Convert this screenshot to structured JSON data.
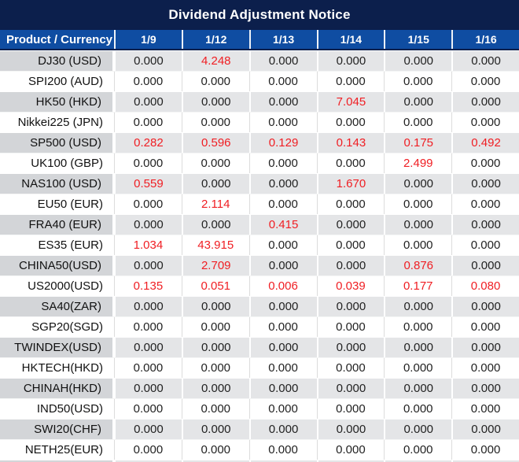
{
  "title": "Dividend Adjustment Notice",
  "colors": {
    "title_bar": "#0c1f4c",
    "header_blue": "#0f4da2",
    "row_gray_label": "#d3d5d8",
    "row_gray_value": "#e4e5e7",
    "row_white": "#ffffff",
    "value_red": "#f01e23",
    "text_dark": "#222222"
  },
  "table": {
    "product_header": "Product / Currency",
    "date_headers": [
      "1/9",
      "1/12",
      "1/13",
      "1/14",
      "1/15",
      "1/16"
    ],
    "rows": [
      {
        "product": "DJ30 (USD)",
        "values": [
          "0.000",
          "4.248",
          "0.000",
          "0.000",
          "0.000",
          "0.000"
        ],
        "red": [
          0,
          1,
          0,
          0,
          0,
          0
        ]
      },
      {
        "product": "SPI200 (AUD)",
        "values": [
          "0.000",
          "0.000",
          "0.000",
          "0.000",
          "0.000",
          "0.000"
        ],
        "red": [
          0,
          0,
          0,
          0,
          0,
          0
        ]
      },
      {
        "product": "HK50 (HKD)",
        "values": [
          "0.000",
          "0.000",
          "0.000",
          "7.045",
          "0.000",
          "0.000"
        ],
        "red": [
          0,
          0,
          0,
          1,
          0,
          0
        ]
      },
      {
        "product": "Nikkei225 (JPN)",
        "values": [
          "0.000",
          "0.000",
          "0.000",
          "0.000",
          "0.000",
          "0.000"
        ],
        "red": [
          0,
          0,
          0,
          0,
          0,
          0
        ]
      },
      {
        "product": "SP500 (USD)",
        "values": [
          "0.282",
          "0.596",
          "0.129",
          "0.143",
          "0.175",
          "0.492"
        ],
        "red": [
          1,
          1,
          1,
          1,
          1,
          1
        ]
      },
      {
        "product": "UK100 (GBP)",
        "values": [
          "0.000",
          "0.000",
          "0.000",
          "0.000",
          "2.499",
          "0.000"
        ],
        "red": [
          0,
          0,
          0,
          0,
          1,
          0
        ]
      },
      {
        "product": "NAS100 (USD)",
        "values": [
          "0.559",
          "0.000",
          "0.000",
          "1.670",
          "0.000",
          "0.000"
        ],
        "red": [
          1,
          0,
          0,
          1,
          0,
          0
        ]
      },
      {
        "product": "EU50 (EUR)",
        "values": [
          "0.000",
          "2.114",
          "0.000",
          "0.000",
          "0.000",
          "0.000"
        ],
        "red": [
          0,
          1,
          0,
          0,
          0,
          0
        ]
      },
      {
        "product": "FRA40 (EUR)",
        "values": [
          "0.000",
          "0.000",
          "0.415",
          "0.000",
          "0.000",
          "0.000"
        ],
        "red": [
          0,
          0,
          1,
          0,
          0,
          0
        ]
      },
      {
        "product": "ES35 (EUR)",
        "values": [
          "1.034",
          "43.915",
          "0.000",
          "0.000",
          "0.000",
          "0.000"
        ],
        "red": [
          1,
          1,
          0,
          0,
          0,
          0
        ]
      },
      {
        "product": "CHINA50(USD)",
        "values": [
          "0.000",
          "2.709",
          "0.000",
          "0.000",
          "0.876",
          "0.000"
        ],
        "red": [
          0,
          1,
          0,
          0,
          1,
          0
        ]
      },
      {
        "product": "US2000(USD)",
        "values": [
          "0.135",
          "0.051",
          "0.006",
          "0.039",
          "0.177",
          "0.080"
        ],
        "red": [
          1,
          1,
          1,
          1,
          1,
          1
        ]
      },
      {
        "product": "SA40(ZAR)",
        "values": [
          "0.000",
          "0.000",
          "0.000",
          "0.000",
          "0.000",
          "0.000"
        ],
        "red": [
          0,
          0,
          0,
          0,
          0,
          0
        ]
      },
      {
        "product": "SGP20(SGD)",
        "values": [
          "0.000",
          "0.000",
          "0.000",
          "0.000",
          "0.000",
          "0.000"
        ],
        "red": [
          0,
          0,
          0,
          0,
          0,
          0
        ]
      },
      {
        "product": "TWINDEX(USD)",
        "values": [
          "0.000",
          "0.000",
          "0.000",
          "0.000",
          "0.000",
          "0.000"
        ],
        "red": [
          0,
          0,
          0,
          0,
          0,
          0
        ]
      },
      {
        "product": "HKTECH(HKD)",
        "values": [
          "0.000",
          "0.000",
          "0.000",
          "0.000",
          "0.000",
          "0.000"
        ],
        "red": [
          0,
          0,
          0,
          0,
          0,
          0
        ]
      },
      {
        "product": "CHINAH(HKD)",
        "values": [
          "0.000",
          "0.000",
          "0.000",
          "0.000",
          "0.000",
          "0.000"
        ],
        "red": [
          0,
          0,
          0,
          0,
          0,
          0
        ]
      },
      {
        "product": "IND50(USD)",
        "values": [
          "0.000",
          "0.000",
          "0.000",
          "0.000",
          "0.000",
          "0.000"
        ],
        "red": [
          0,
          0,
          0,
          0,
          0,
          0
        ]
      },
      {
        "product": "SWI20(CHF)",
        "values": [
          "0.000",
          "0.000",
          "0.000",
          "0.000",
          "0.000",
          "0.000"
        ],
        "red": [
          0,
          0,
          0,
          0,
          0,
          0
        ]
      },
      {
        "product": "NETH25(EUR)",
        "values": [
          "0.000",
          "0.000",
          "0.000",
          "0.000",
          "0.000",
          "0.000"
        ],
        "red": [
          0,
          0,
          0,
          0,
          0,
          0
        ]
      }
    ]
  }
}
